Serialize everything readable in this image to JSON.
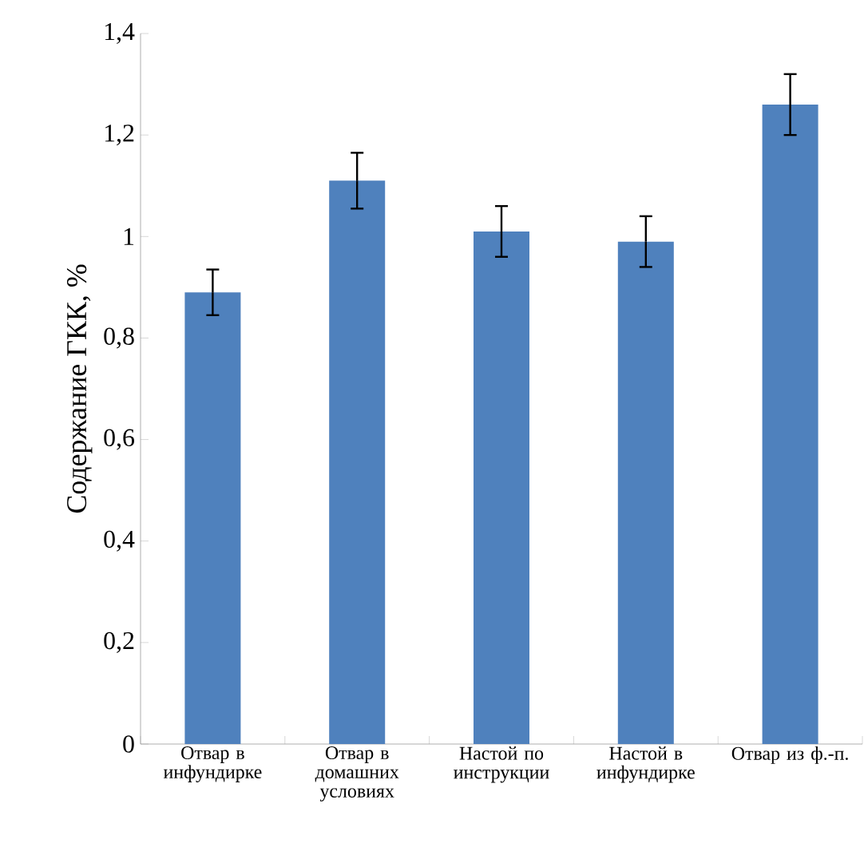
{
  "chart_data": {
    "type": "bar",
    "ylabel": "Содержание ГКК, %",
    "categories": [
      "Отвар в инфундирке",
      "Отвар в домашних условиях",
      "Настой по инструкции",
      "Настой в инфундирке",
      "Отвар из ф.-п."
    ],
    "values": [
      0.89,
      1.11,
      1.01,
      0.99,
      1.26
    ],
    "errors": [
      0.045,
      0.055,
      0.05,
      0.05,
      0.06
    ],
    "color": "#4f81bd",
    "ylim": [
      0,
      1.4
    ],
    "yticks": [
      0,
      {
        "value": 0.2,
        "label": "0,2"
      },
      {
        "value": 0.4,
        "label": "0,4"
      },
      {
        "value": 0.6,
        "label": "0,6"
      },
      {
        "value": 0.8,
        "label": "0,8"
      },
      1,
      {
        "value": 1.2,
        "label": "1,2"
      },
      {
        "value": 1.4,
        "label": "1,4"
      }
    ],
    "grid": false
  }
}
